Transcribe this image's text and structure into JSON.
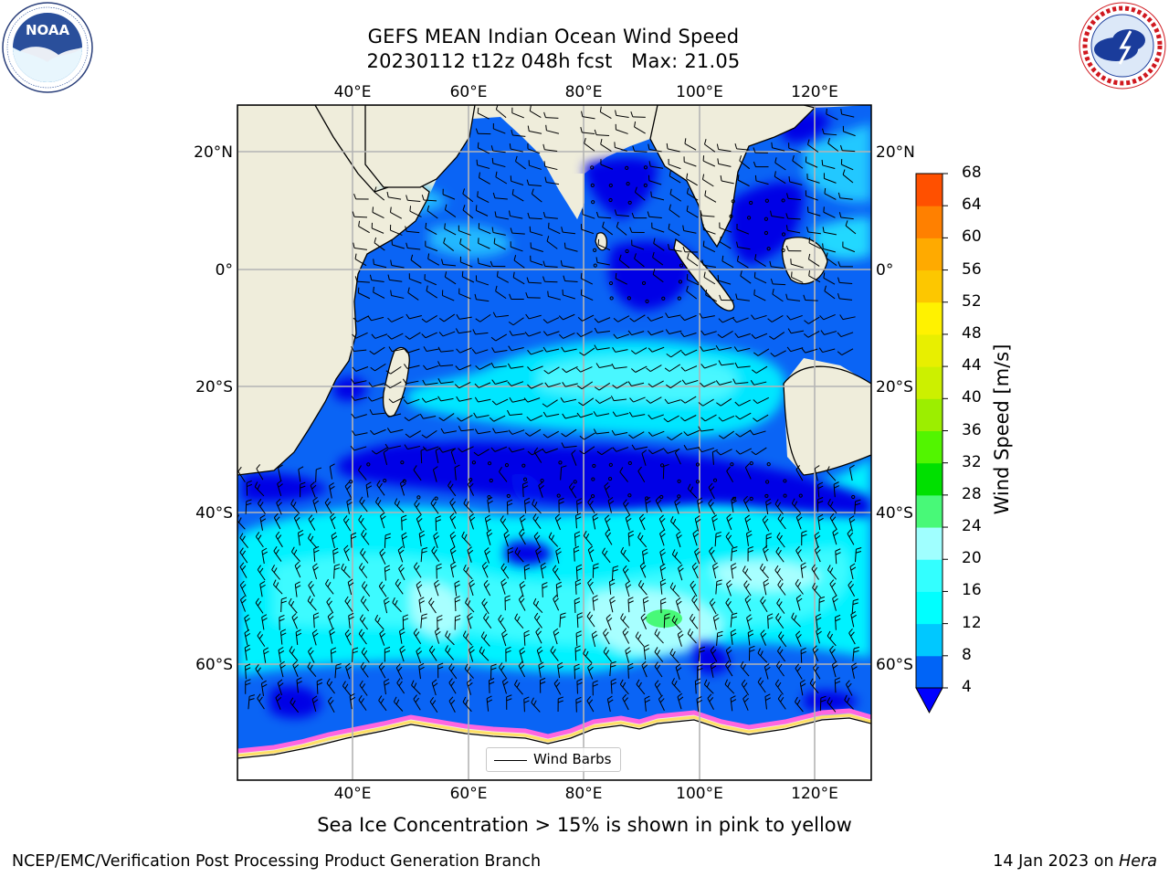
{
  "title": {
    "line1": "GEFS MEAN Indian Ocean Wind Speed",
    "line2": "20230112 t12z 048h fcst   Max: 21.05"
  },
  "map": {
    "lon_range": [
      20,
      130
    ],
    "lat_range": [
      -74,
      28
    ],
    "lon_ticks": [
      "40°E",
      "60°E",
      "80°E",
      "100°E",
      "120°E"
    ],
    "lat_ticks": [
      "20°N",
      "0°",
      "20°S",
      "40°S",
      "60°S"
    ],
    "land_color": "#efeddb",
    "gridlines": true,
    "legend": {
      "label": "Wind Barbs",
      "placement": "bottom-center"
    }
  },
  "colorbar": {
    "label": "Wind Speed [m/s]",
    "ticks": [
      "4",
      "8",
      "12",
      "16",
      "20",
      "24",
      "28",
      "32",
      "36",
      "40",
      "44",
      "48",
      "52",
      "56",
      "60",
      "64",
      "68"
    ],
    "colors": [
      "#0064f7",
      "#00c8ff",
      "#00ffff",
      "#33ffff",
      "#a0ffff",
      "#48f978",
      "#00e000",
      "#52f500",
      "#9cee00",
      "#ccf000",
      "#e8ef00",
      "#fff200",
      "#fdc700",
      "#ffaa00",
      "#ff8000",
      "#ff5000",
      "#ff2800",
      "#ff0000"
    ],
    "under_color": "#0000ff"
  },
  "logos": {
    "left": {
      "name": "NOAA",
      "ring_text": "NATIONAL OCEANIC AND ATMOSPHERIC ADMINISTRATION · U.S. DEPARTMENT OF COMMERCE"
    },
    "right": {
      "name": "NATIONAL WEATHER SERVICE"
    }
  },
  "footer": {
    "note": "Sea Ice Concentration > 15% is shown in pink to yellow",
    "credit": "NCEP/EMC/Verification Post Processing Product Generation Branch",
    "date": "14 Jan 2023 on",
    "machine": "Hera"
  }
}
